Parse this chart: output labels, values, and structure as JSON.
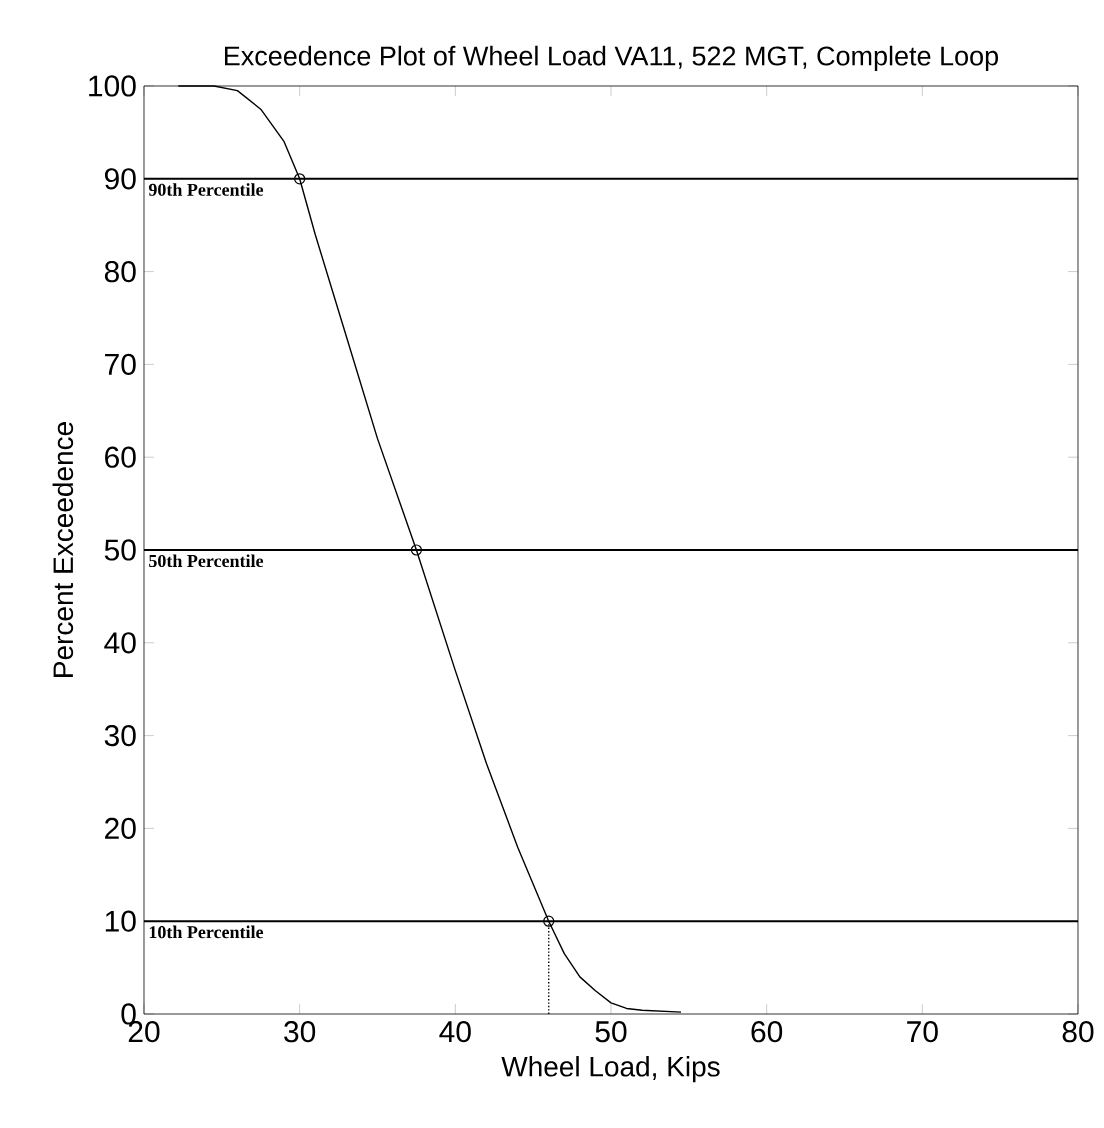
{
  "chart_data": {
    "type": "line",
    "title": "Exceedence Plot of Wheel Load VA11, 522 MGT, Complete Loop",
    "xlabel": "Wheel Load, Kips",
    "ylabel": "Percent Exceedence",
    "xlim": [
      20,
      80
    ],
    "ylim": [
      0,
      100
    ],
    "xticks": [
      20,
      30,
      40,
      50,
      60,
      70,
      80
    ],
    "yticks": [
      0,
      10,
      20,
      30,
      40,
      50,
      60,
      70,
      80,
      90,
      100
    ],
    "grid": false,
    "series": [
      {
        "color": "#000000",
        "marker": "none",
        "line_style": "solid",
        "x": [
          22.2,
          24.5,
          26,
          27.5,
          29,
          30,
          31,
          33,
          35,
          37.5,
          40,
          42,
          44,
          46,
          47,
          48,
          49,
          50,
          51,
          52,
          54.5
        ],
        "values": [
          100,
          100,
          99.5,
          97.5,
          94,
          90,
          84,
          73,
          62,
          50,
          37,
          27,
          18,
          10,
          6.5,
          4,
          2.5,
          1.2,
          0.6,
          0.4,
          0.2
        ]
      },
      {
        "type": "scatter",
        "color": "#000000",
        "marker": "circle",
        "x": [
          30,
          37.5,
          46
        ],
        "values": [
          90,
          50,
          10
        ]
      },
      {
        "type": "line",
        "color": "#000000",
        "marker": "none",
        "line_style": "dotted",
        "x": [
          46,
          46
        ],
        "values": [
          0,
          10
        ]
      }
    ],
    "ref_lines": [
      {
        "axis": "y",
        "value": 90,
        "label": "90th Percentile",
        "color": "#000000",
        "line_style": "solid"
      },
      {
        "axis": "y",
        "value": 50,
        "label": "50th Percentile",
        "color": "#000000",
        "line_style": "solid"
      },
      {
        "axis": "y",
        "value": 10,
        "label": "10th Percentile",
        "color": "#000000",
        "line_style": "solid"
      }
    ]
  }
}
